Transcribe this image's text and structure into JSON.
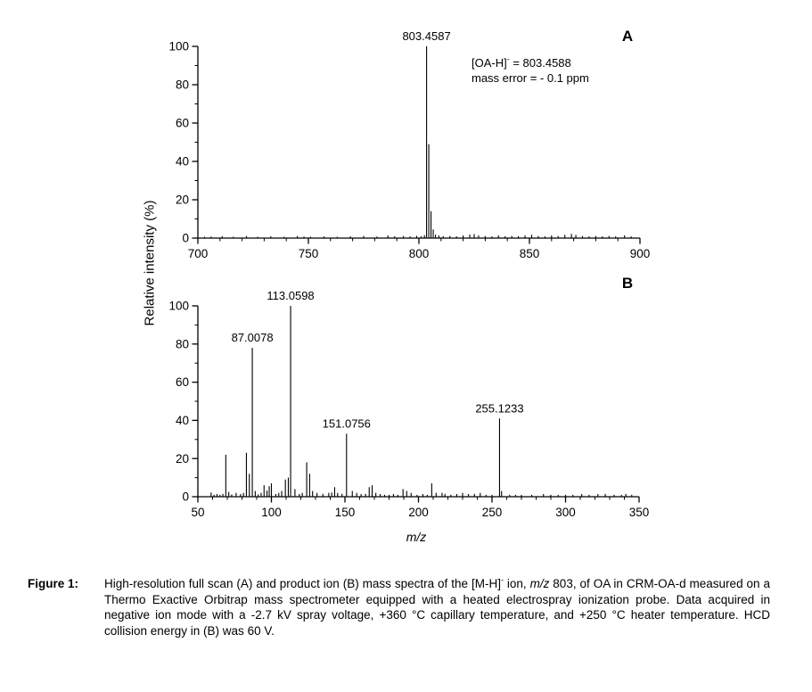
{
  "figure": {
    "ylabel": "Relative intensity (%)",
    "xlabel": "m/z",
    "panel_a": {
      "label": "A",
      "annotation": {
        "bracket": "[OA-H]",
        "charge": "-",
        "equals": " = 803.4588",
        "line2": "mass error = - 0.1 ppm"
      }
    },
    "panel_b": {
      "label": "B"
    }
  },
  "chart_data": [
    {
      "id": "A",
      "type": "bar",
      "subtype": "mass-spectrum-stick",
      "title": "High-resolution full scan mass spectrum",
      "xlabel": "m/z",
      "ylabel": "Relative intensity (%)",
      "xlim": [
        700,
        900
      ],
      "ylim": [
        0,
        100
      ],
      "xticks": [
        700,
        750,
        800,
        850,
        900
      ],
      "yticks": [
        0,
        20,
        40,
        60,
        80,
        100
      ],
      "x_minor_step": 10,
      "y_minor_step": 10,
      "labeled_peaks": [
        {
          "mz": 803.4587,
          "intensity": 100,
          "label": "803.4587"
        }
      ],
      "peaks": [
        [
          703,
          0.7
        ],
        [
          706,
          0.8
        ],
        [
          711,
          1
        ],
        [
          716,
          0.7
        ],
        [
          722,
          1.1
        ],
        [
          727,
          0.7
        ],
        [
          733,
          0.9
        ],
        [
          739,
          0.7
        ],
        [
          745,
          1.1
        ],
        [
          748,
          0.8
        ],
        [
          751,
          0.7
        ],
        [
          757,
          0.9
        ],
        [
          763,
          0.7
        ],
        [
          769,
          0.9
        ],
        [
          775,
          1.1
        ],
        [
          781,
          0.8
        ],
        [
          786,
          1.4
        ],
        [
          789,
          0.9
        ],
        [
          793,
          1.1
        ],
        [
          796,
          0.9
        ],
        [
          799,
          1.2
        ],
        [
          801,
          1
        ],
        [
          802.5,
          1.5
        ],
        [
          803.4587,
          100
        ],
        [
          804.462,
          49
        ],
        [
          805.465,
          14
        ],
        [
          806.468,
          4.5
        ],
        [
          807.5,
          1.8
        ],
        [
          809,
          1.4
        ],
        [
          811,
          1
        ],
        [
          814,
          1.1
        ],
        [
          817,
          0.9
        ],
        [
          820,
          1.4
        ],
        [
          823,
          1.9
        ],
        [
          825,
          2.1
        ],
        [
          827,
          1.4
        ],
        [
          830,
          1.1
        ],
        [
          833,
          0.9
        ],
        [
          836,
          1.4
        ],
        [
          839,
          1
        ],
        [
          842,
          1.1
        ],
        [
          845,
          1
        ],
        [
          848,
          1.4
        ],
        [
          851,
          1.7
        ],
        [
          854,
          1.1
        ],
        [
          857,
          0.9
        ],
        [
          860,
          1.4
        ],
        [
          863,
          1.1
        ],
        [
          866,
          1.7
        ],
        [
          869,
          2.2
        ],
        [
          871,
          1.7
        ],
        [
          874,
          1.1
        ],
        [
          877,
          0.9
        ],
        [
          880,
          1.1
        ],
        [
          883,
          0.9
        ],
        [
          886,
          1.1
        ],
        [
          889,
          0.9
        ],
        [
          893,
          1.4
        ],
        [
          896,
          0.9
        ]
      ]
    },
    {
      "id": "B",
      "type": "bar",
      "subtype": "mass-spectrum-stick",
      "title": "Product ion mass spectrum (HCD 60 V)",
      "xlabel": "m/z",
      "ylabel": "Relative intensity (%)",
      "xlim": [
        50,
        350
      ],
      "ylim": [
        0,
        100
      ],
      "xticks": [
        50,
        100,
        150,
        200,
        250,
        300,
        350
      ],
      "yticks": [
        0,
        20,
        40,
        60,
        80,
        100
      ],
      "x_minor_step": 10,
      "y_minor_step": 10,
      "labeled_peaks": [
        {
          "mz": 87.0078,
          "intensity": 78,
          "label": "87.0078"
        },
        {
          "mz": 113.0598,
          "intensity": 100,
          "label": "113.0598"
        },
        {
          "mz": 151.0756,
          "intensity": 33,
          "label": "151.0756"
        },
        {
          "mz": 255.1233,
          "intensity": 41,
          "label": "255.1233"
        }
      ],
      "peaks": [
        [
          59,
          2.2
        ],
        [
          61,
          1
        ],
        [
          63,
          1.4
        ],
        [
          65,
          1
        ],
        [
          67,
          1.5
        ],
        [
          69,
          22
        ],
        [
          71,
          2.5
        ],
        [
          73,
          1.2
        ],
        [
          76,
          2
        ],
        [
          79,
          1.4
        ],
        [
          81,
          2
        ],
        [
          83,
          23
        ],
        [
          85,
          12
        ],
        [
          87.0078,
          78
        ],
        [
          89,
          3
        ],
        [
          91,
          1.2
        ],
        [
          93,
          2
        ],
        [
          95,
          6
        ],
        [
          97,
          3.2
        ],
        [
          98.5,
          5.5
        ],
        [
          100,
          7
        ],
        [
          103,
          1.4
        ],
        [
          105,
          2
        ],
        [
          107,
          3
        ],
        [
          109.5,
          9
        ],
        [
          111.5,
          10
        ],
        [
          113.0598,
          100
        ],
        [
          116,
          4
        ],
        [
          119,
          1.4
        ],
        [
          121,
          2
        ],
        [
          124,
          18
        ],
        [
          126,
          12
        ],
        [
          128,
          3
        ],
        [
          131,
          2
        ],
        [
          135,
          1.5
        ],
        [
          139,
          2
        ],
        [
          141,
          2.2
        ],
        [
          143,
          5
        ],
        [
          145,
          2
        ],
        [
          148,
          1.5
        ],
        [
          151.0756,
          33
        ],
        [
          155,
          3
        ],
        [
          158,
          2
        ],
        [
          161,
          1.4
        ],
        [
          164,
          1.5
        ],
        [
          166.5,
          5
        ],
        [
          168.5,
          6
        ],
        [
          171,
          2
        ],
        [
          174,
          1.4
        ],
        [
          177,
          1
        ],
        [
          180,
          1
        ],
        [
          183,
          1.4
        ],
        [
          186,
          1
        ],
        [
          189.5,
          4
        ],
        [
          192,
          3
        ],
        [
          195,
          2
        ],
        [
          199,
          1
        ],
        [
          203,
          1.4
        ],
        [
          206,
          1
        ],
        [
          209,
          7
        ],
        [
          212,
          2
        ],
        [
          216,
          2
        ],
        [
          218,
          1.5
        ],
        [
          222,
          1
        ],
        [
          226,
          1.4
        ],
        [
          230,
          2
        ],
        [
          234,
          1.4
        ],
        [
          238,
          1.5
        ],
        [
          242,
          2
        ],
        [
          246,
          1
        ],
        [
          250,
          1
        ],
        [
          255.1233,
          41
        ],
        [
          256.5,
          3
        ],
        [
          262,
          1
        ],
        [
          266,
          1
        ],
        [
          270,
          1
        ],
        [
          277,
          1
        ],
        [
          285,
          1.4
        ],
        [
          290,
          1
        ],
        [
          295,
          1
        ],
        [
          300,
          1
        ],
        [
          305,
          1
        ],
        [
          311,
          1.4
        ],
        [
          316,
          1
        ],
        [
          322,
          1.4
        ],
        [
          327,
          1.5
        ],
        [
          333,
          1
        ],
        [
          338,
          1
        ],
        [
          341,
          1.5
        ],
        [
          345,
          1
        ]
      ]
    }
  ],
  "caption": {
    "label": "Figure 1:",
    "segments": [
      {
        "t": "High-resolution full scan (A) and product ion (B) mass spectra of the [M-H]"
      },
      {
        "t": "-",
        "style": "sup"
      },
      {
        "t": " ion, "
      },
      {
        "t": "m/z",
        "style": "italic"
      },
      {
        "t": " 803, of OA in CRM-OA-d measured on a Thermo Exactive Orbitrap mass spectrometer equipped with a heated electrospray ionization probe. Data acquired in negative ion mode with a -2.7 kV spray voltage, +360 °C capillary temperature, and +250 °C heater temperature. HCD collision energy in (B) was 60 V."
      }
    ]
  },
  "colors": {
    "ink": "#000000",
    "background": "#ffffff"
  }
}
